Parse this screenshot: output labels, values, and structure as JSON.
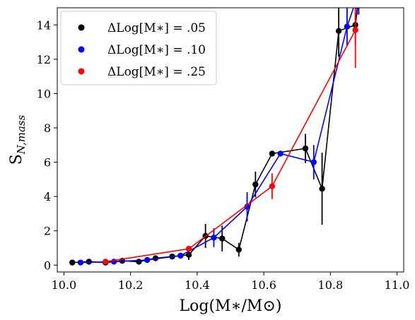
{
  "chart_data": {
    "type": "line",
    "xlabel": "Log(M∗/M⊙)",
    "ylabel": "S_N,mass",
    "xlim": [
      9.98,
      11.02
    ],
    "ylim": [
      -0.4,
      15.0
    ],
    "xticks": [
      10.0,
      10.2,
      10.4,
      10.6,
      10.8,
      11.0
    ],
    "xtick_labels": [
      "10.0",
      "10.2",
      "10.4",
      "10.6",
      "10.8",
      "11.0"
    ],
    "yticks": [
      0,
      2,
      4,
      6,
      8,
      10,
      12,
      14
    ],
    "ytick_labels": [
      "0",
      "2",
      "4",
      "6",
      "8",
      "10",
      "12",
      "14"
    ],
    "grid": false,
    "legend_placement": "top-left",
    "series": [
      {
        "name": "ΔLog[M∗] = .05",
        "color": "#000000",
        "points": [
          {
            "x": 10.025,
            "y": 0.15,
            "err": 0.0
          },
          {
            "x": 10.075,
            "y": 0.2,
            "err": 0.0
          },
          {
            "x": 10.125,
            "y": 0.15,
            "err": 0.0
          },
          {
            "x": 10.175,
            "y": 0.25,
            "err": 0.0
          },
          {
            "x": 10.225,
            "y": 0.2,
            "err": 0.0
          },
          {
            "x": 10.275,
            "y": 0.4,
            "err": 0.1
          },
          {
            "x": 10.325,
            "y": 0.5,
            "err": 0.1
          },
          {
            "x": 10.375,
            "y": 0.6,
            "err": 0.3
          },
          {
            "x": 10.425,
            "y": 1.7,
            "err": 0.7
          },
          {
            "x": 10.475,
            "y": 1.55,
            "err": 0.75
          },
          {
            "x": 10.525,
            "y": 0.9,
            "err": 0.4
          },
          {
            "x": 10.575,
            "y": 4.7,
            "err": 0.75
          },
          {
            "x": 10.625,
            "y": 6.5,
            "err": 0.1
          },
          {
            "x": 10.725,
            "y": 6.8,
            "err": 0.85
          },
          {
            "x": 10.775,
            "y": 4.45,
            "err": 2.1
          },
          {
            "x": 10.825,
            "y": 13.65,
            "err": 1.5
          },
          {
            "x": 10.875,
            "y": 14.0,
            "err": 1.2
          },
          {
            "x": 10.885,
            "y": 15.6,
            "err": 1.0
          }
        ]
      },
      {
        "name": "ΔLog[M∗] = .10",
        "color": "#0000ff",
        "points": [
          {
            "x": 10.05,
            "y": 0.15,
            "err": 0.0
          },
          {
            "x": 10.15,
            "y": 0.2,
            "err": 0.0
          },
          {
            "x": 10.25,
            "y": 0.3,
            "err": 0.1
          },
          {
            "x": 10.35,
            "y": 0.55,
            "err": 0.15
          },
          {
            "x": 10.45,
            "y": 1.6,
            "err": 0.55
          },
          {
            "x": 10.55,
            "y": 3.4,
            "err": 0.85
          },
          {
            "x": 10.65,
            "y": 6.5,
            "err": 0.1
          },
          {
            "x": 10.75,
            "y": 6.0,
            "err": 1.0
          },
          {
            "x": 10.85,
            "y": 13.9,
            "err": 1.1
          },
          {
            "x": 10.88,
            "y": 15.6,
            "err": 1.0
          }
        ]
      },
      {
        "name": "ΔLog[M∗] = .25",
        "color": "#ff0000",
        "points": [
          {
            "x": 10.125,
            "y": 0.2,
            "err": 0.1
          },
          {
            "x": 10.375,
            "y": 0.95,
            "err": 0.15
          },
          {
            "x": 10.625,
            "y": 4.6,
            "err": 0.75
          },
          {
            "x": 10.875,
            "y": 13.7,
            "err": 2.2
          }
        ]
      }
    ]
  }
}
